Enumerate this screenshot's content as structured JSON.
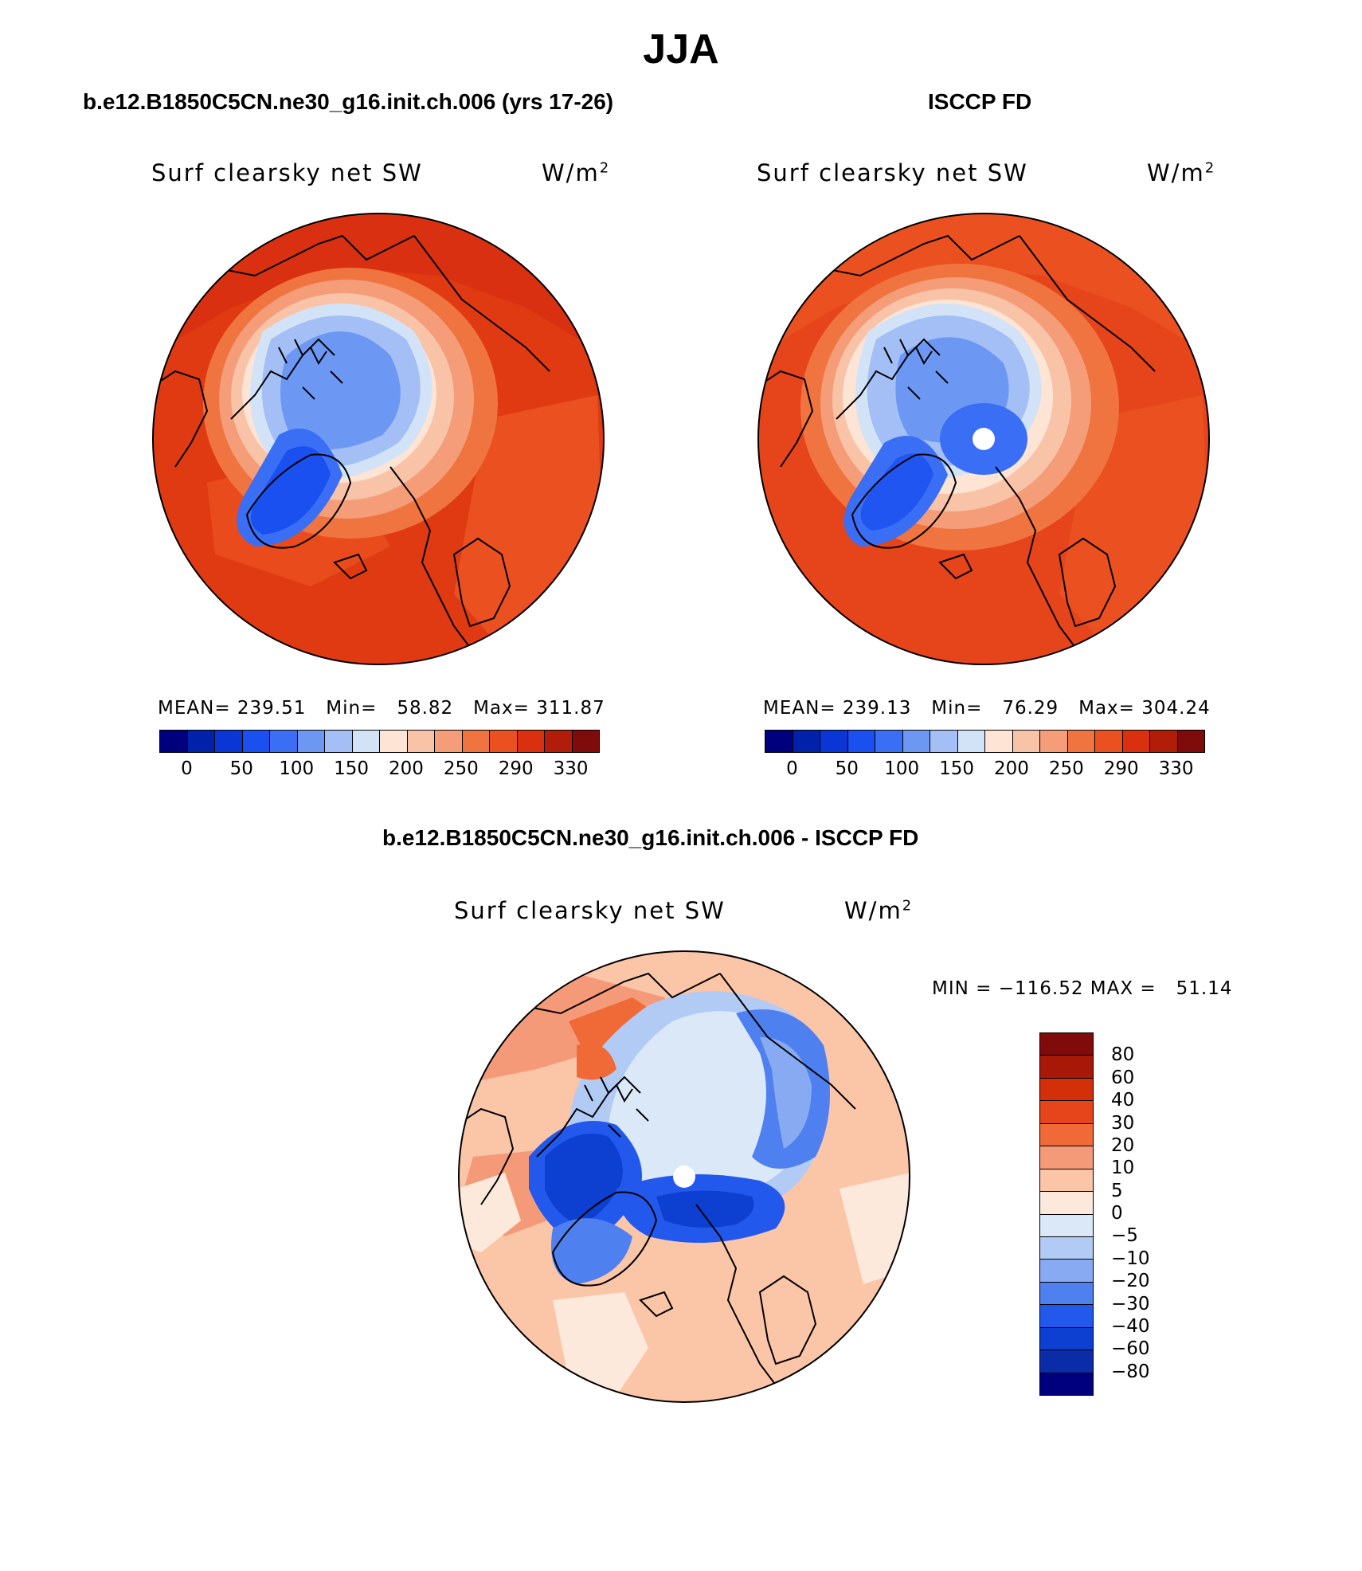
{
  "figure_title": "JJA",
  "panels": {
    "model": {
      "title": "b.e12.B1850C5CN.ne30_g16.init.ch.006 (yrs 17-26)",
      "variable": "Surf clearsky net SW",
      "units": "W/m",
      "units_exp": "2",
      "stats": "MEAN= 239.51   Min=   58.82   Max= 311.87"
    },
    "obs": {
      "title": "ISCCP FD",
      "variable": "Surf clearsky net SW",
      "units": "W/m",
      "units_exp": "2",
      "stats": "MEAN= 239.13   Min=   76.29   Max= 304.24"
    },
    "diff": {
      "title": "b.e12.B1850C5CN.ne30_g16.init.ch.006 - ISCCP FD",
      "variable": "Surf clearsky net SW",
      "units": "W/m",
      "units_exp": "2",
      "stats": "MIN = −116.52 MAX =   51.14"
    }
  },
  "colorbars": {
    "abs": {
      "colors": [
        "#00007f",
        "#0022aa",
        "#0a36d6",
        "#1a4ff0",
        "#3a6ef4",
        "#6c98f4",
        "#a3bff5",
        "#d3e3f7",
        "#fde4d5",
        "#f9c3a8",
        "#f59c79",
        "#f07440",
        "#eb5020",
        "#db3010",
        "#b21d0a",
        "#7f0b0b"
      ],
      "tick_labels": [
        "0",
        "50",
        "100",
        "150",
        "200",
        "250",
        "290",
        "330"
      ]
    },
    "diff": {
      "colors": [
        "#7f0b0b",
        "#a81808",
        "#d3300a",
        "#e6441a",
        "#ef6a37",
        "#f59a78",
        "#fbc5a8",
        "#fde9dc",
        "#dbe8f8",
        "#b2cbf5",
        "#88aaf2",
        "#4f80ef",
        "#2358ec",
        "#0d3fd0",
        "#0a2ca8",
        "#00007f"
      ],
      "tick_labels": [
        "80",
        "60",
        "40",
        "30",
        "20",
        "10",
        "5",
        "0",
        "−5",
        "−10",
        "−20",
        "−30",
        "−40",
        "−60",
        "−80"
      ]
    }
  }
}
